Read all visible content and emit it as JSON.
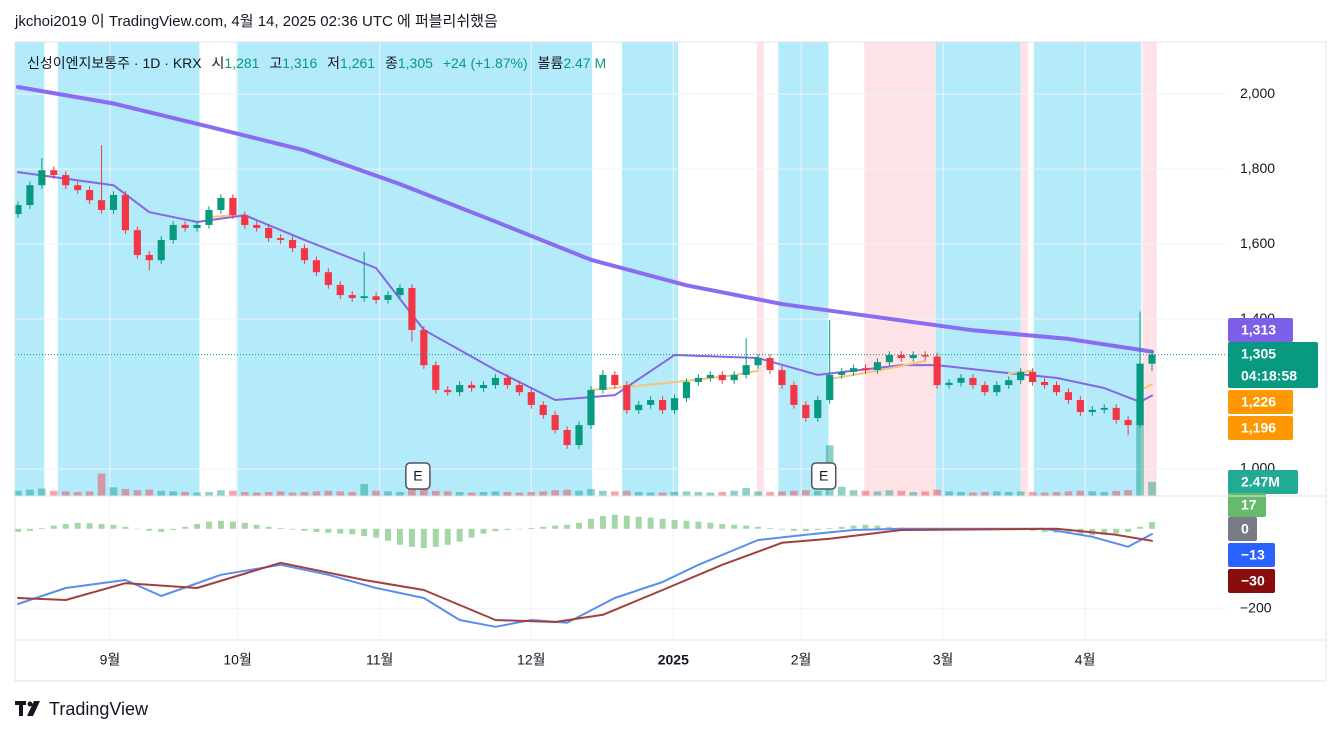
{
  "header": {
    "text": "jkchoi2019 이 TradingView.com, 4월 14, 2025 02:36 UTC 에 퍼블리쉬했음"
  },
  "footer": {
    "text": "TradingView"
  },
  "chart_data": [
    {
      "type": "candlestick",
      "title": "신성이엔지보통주 · 1D · KRX",
      "ohlc": [
        {
          "name": "시",
          "value": "1,281"
        },
        {
          "name": "고",
          "value": "1,316"
        },
        {
          "name": "저",
          "value": "1,261"
        },
        {
          "name": "종",
          "value": "1,305"
        }
      ],
      "change": "+24 (+1.87%)",
      "volume_name": "볼륨",
      "volume_value": "2.47 M",
      "up_color": "#089981",
      "down_color": "#f23645",
      "ylim": [
        928,
        2139
      ],
      "yticks": [
        {
          "value": 1000,
          "label": "1,000"
        },
        {
          "value": 1400,
          "label": "1,400"
        },
        {
          "value": 1600,
          "label": "1,600"
        },
        {
          "value": 1800,
          "label": "1,800"
        },
        {
          "value": 2000,
          "label": "2,000"
        }
      ],
      "grid": true,
      "open": [
        1680,
        1704,
        1757,
        1797,
        1784,
        1757,
        1744,
        1717,
        1691,
        1731,
        1637,
        1571,
        1557,
        1611,
        1651,
        1643,
        1651,
        1691,
        1723,
        1677,
        1651,
        1643,
        1616,
        1611,
        1589,
        1557,
        1525,
        1491,
        1464,
        1456,
        1461,
        1451,
        1464,
        1483,
        1371,
        1277,
        1211,
        1205,
        1224,
        1216,
        1224,
        1243,
        1224,
        1205,
        1171,
        1144,
        1104,
        1064,
        1117,
        1211,
        1251,
        1224,
        1157,
        1171,
        1184,
        1157,
        1189,
        1232,
        1243,
        1251,
        1237,
        1251,
        1277,
        1296,
        1264,
        1224,
        1171,
        1136,
        1184,
        1251,
        1259,
        1269,
        1264,
        1285,
        1304,
        1296,
        1304,
        1300,
        1224,
        1230,
        1243,
        1224,
        1205,
        1224,
        1237,
        1259,
        1232,
        1224,
        1205,
        1184,
        1152,
        1158,
        1163,
        1131,
        1117,
        1281
      ],
      "high": [
        1714,
        1767,
        1830,
        1807,
        1794,
        1767,
        1754,
        1864,
        1741,
        1741,
        1647,
        1581,
        1621,
        1661,
        1661,
        1661,
        1701,
        1733,
        1733,
        1687,
        1661,
        1653,
        1626,
        1621,
        1599,
        1567,
        1535,
        1501,
        1474,
        1579,
        1471,
        1474,
        1493,
        1493,
        1381,
        1287,
        1221,
        1234,
        1234,
        1234,
        1253,
        1253,
        1234,
        1215,
        1181,
        1154,
        1114,
        1127,
        1221,
        1264,
        1261,
        1234,
        1181,
        1194,
        1194,
        1199,
        1242,
        1253,
        1261,
        1261,
        1261,
        1349,
        1306,
        1306,
        1274,
        1234,
        1181,
        1194,
        1397,
        1269,
        1279,
        1279,
        1295,
        1314,
        1314,
        1314,
        1314,
        1310,
        1240,
        1253,
        1253,
        1234,
        1234,
        1247,
        1269,
        1269,
        1242,
        1234,
        1215,
        1194,
        1168,
        1173,
        1173,
        1141,
        1420,
        1316
      ],
      "low": [
        1670,
        1694,
        1747,
        1774,
        1747,
        1734,
        1707,
        1681,
        1681,
        1627,
        1561,
        1530,
        1547,
        1601,
        1633,
        1633,
        1641,
        1681,
        1667,
        1641,
        1633,
        1606,
        1601,
        1579,
        1547,
        1515,
        1481,
        1454,
        1446,
        1446,
        1441,
        1441,
        1454,
        1340,
        1267,
        1201,
        1195,
        1195,
        1206,
        1206,
        1214,
        1214,
        1195,
        1161,
        1134,
        1094,
        1054,
        1054,
        1107,
        1201,
        1214,
        1147,
        1147,
        1161,
        1147,
        1147,
        1179,
        1222,
        1233,
        1227,
        1227,
        1241,
        1267,
        1254,
        1214,
        1161,
        1126,
        1126,
        1174,
        1241,
        1249,
        1254,
        1254,
        1275,
        1286,
        1286,
        1290,
        1214,
        1214,
        1220,
        1214,
        1195,
        1195,
        1214,
        1227,
        1222,
        1214,
        1195,
        1174,
        1142,
        1142,
        1148,
        1121,
        1090,
        1110,
        1261
      ],
      "close": [
        1704,
        1757,
        1797,
        1784,
        1757,
        1744,
        1717,
        1691,
        1731,
        1637,
        1571,
        1557,
        1611,
        1651,
        1643,
        1651,
        1691,
        1723,
        1677,
        1651,
        1643,
        1616,
        1611,
        1589,
        1557,
        1525,
        1491,
        1464,
        1456,
        1461,
        1451,
        1464,
        1483,
        1371,
        1277,
        1211,
        1205,
        1224,
        1216,
        1224,
        1243,
        1224,
        1205,
        1171,
        1144,
        1104,
        1064,
        1117,
        1211,
        1251,
        1224,
        1157,
        1171,
        1184,
        1157,
        1189,
        1232,
        1243,
        1251,
        1237,
        1251,
        1277,
        1296,
        1264,
        1224,
        1171,
        1136,
        1184,
        1251,
        1259,
        1269,
        1264,
        1285,
        1304,
        1296,
        1304,
        1300,
        1224,
        1230,
        1243,
        1224,
        1205,
        1224,
        1237,
        1259,
        1232,
        1224,
        1205,
        1184,
        1152,
        1158,
        1163,
        1131,
        1117,
        1281,
        1305
      ],
      "volume": [
        900000,
        1100000,
        1300000,
        900000,
        800000,
        700000,
        800000,
        3900000,
        1500000,
        1200000,
        1000000,
        1100000,
        900000,
        800000,
        700000,
        600000,
        700000,
        1000000,
        900000,
        700000,
        600000,
        700000,
        800000,
        600000,
        700000,
        800000,
        900000,
        800000,
        700000,
        2100000,
        900000,
        800000,
        700000,
        1500000,
        1300000,
        900000,
        800000,
        700000,
        600000,
        700000,
        800000,
        700000,
        600000,
        700000,
        800000,
        1000000,
        1100000,
        900000,
        1200000,
        900000,
        800000,
        900000,
        700000,
        600000,
        600000,
        700000,
        800000,
        700000,
        600000,
        700000,
        900000,
        1400000,
        800000,
        700000,
        800000,
        900000,
        1000000,
        900000,
        8800000,
        1600000,
        1000000,
        900000,
        800000,
        1000000,
        900000,
        700000,
        800000,
        1100000,
        800000,
        700000,
        600000,
        700000,
        800000,
        700000,
        800000,
        700000,
        600000,
        700000,
        800000,
        900000,
        800000,
        700000,
        900000,
        1000000,
        16500000,
        2470000
      ],
      "series": [
        {
          "color": "#8a6cf2",
          "x": [
            0,
            8,
            16,
            24,
            32,
            40,
            48,
            56,
            64,
            72,
            80,
            88,
            95
          ],
          "values": [
            2019,
            1975,
            1913,
            1850,
            1760,
            1660,
            1558,
            1490,
            1440,
            1405,
            1370,
            1347,
            1313
          ]
        },
        {
          "color": "#8566e6",
          "x": [
            0,
            8,
            11,
            15,
            19,
            24,
            30,
            34,
            40,
            45,
            50,
            55,
            62,
            67,
            74,
            77,
            82,
            87,
            91,
            94,
            95
          ],
          "values": [
            1792,
            1757,
            1685,
            1659,
            1677,
            1611,
            1536,
            1371,
            1264,
            1184,
            1197,
            1304,
            1296,
            1251,
            1277,
            1277,
            1259,
            1243,
            1216,
            1179,
            1196
          ]
        },
        {
          "color": "#f7c37a",
          "x": [
            16,
            18,
            19,
            48,
            52,
            56,
            60,
            62,
            63,
            68,
            72,
            76,
            77,
            83,
            85,
            86,
            94,
            95
          ],
          "values": [
            1672,
            1677,
            null,
            1211,
            1222,
            1235,
            1250,
            1262,
            null,
            1240,
            1262,
            1288,
            null,
            1255,
            1262,
            null,
            1210,
            1226
          ]
        }
      ],
      "zones": [
        {
          "from": -0.25,
          "to": 2.2,
          "color": "#b3ebfa"
        },
        {
          "from": 3.35,
          "to": 15.2,
          "color": "#b3ebfa"
        },
        {
          "from": 18.3,
          "to": 48.1,
          "color": "#b3ebfa"
        },
        {
          "from": 50.6,
          "to": 55.3,
          "color": "#b3ebfa"
        },
        {
          "from": 61.9,
          "to": 62.5,
          "color": "#fde3e5"
        },
        {
          "from": 63.7,
          "to": 67.9,
          "color": "#b3ebfa"
        },
        {
          "from": 70.9,
          "to": 76.9,
          "color": "#fde3e5"
        },
        {
          "from": 76.9,
          "to": 84.0,
          "color": "#b3ebfa"
        },
        {
          "from": 84.0,
          "to": 84.6,
          "color": "#fde3e5"
        },
        {
          "from": 85.1,
          "to": 94.1,
          "color": "#b3ebfa"
        },
        {
          "from": 94.2,
          "to": 95.4,
          "color": "#fde3e5"
        }
      ],
      "events": [
        {
          "x": 33.5,
          "label": "E"
        },
        {
          "x": 67.5,
          "label": "E"
        }
      ],
      "price_labels": [
        {
          "value": 1313,
          "label": "1,313",
          "color": "#7e5fe8"
        },
        {
          "value": 1305,
          "label": "1,305",
          "color": "#089981",
          "countdown": "04:18:58"
        },
        {
          "value": 1226,
          "label": "1,226",
          "color": "#ff9800"
        },
        {
          "value": 1196,
          "label": "1,196",
          "color": "#ff9800"
        }
      ],
      "volume_label": {
        "value": 2470000,
        "label": "2.47M",
        "color": "#22ab94"
      }
    },
    {
      "type": "macd",
      "xlim": [
        -0.25,
        101.2
      ],
      "xticks": [
        {
          "value": 7.7,
          "label": "9월"
        },
        {
          "value": 18.4,
          "label": "10월"
        },
        {
          "value": 30.3,
          "label": "11월"
        },
        {
          "value": 43.0,
          "label": "12월"
        },
        {
          "value": 54.9,
          "label": "2025"
        },
        {
          "value": 65.6,
          "label": "2월"
        },
        {
          "value": 77.5,
          "label": "3월"
        },
        {
          "value": 89.4,
          "label": "4월"
        }
      ],
      "ylim": [
        -278,
        82
      ],
      "yticks": [
        {
          "value": -200,
          "label": "−200"
        }
      ],
      "histogram": {
        "color": "#a5d6a7",
        "values": [
          -8,
          -5,
          2,
          8,
          12,
          15,
          14,
          12,
          10,
          5,
          0,
          -5,
          -8,
          -3,
          5,
          12,
          18,
          20,
          18,
          15,
          10,
          5,
          2,
          -2,
          -5,
          -8,
          -10,
          -12,
          -14,
          -18,
          -22,
          -30,
          -40,
          -45,
          -48,
          -45,
          -40,
          -32,
          -22,
          -12,
          -6,
          -3,
          0,
          2,
          5,
          8,
          10,
          15,
          25,
          32,
          35,
          33,
          30,
          28,
          25,
          22,
          20,
          18,
          15,
          12,
          10,
          8,
          5,
          2,
          -2,
          -5,
          -6,
          -3,
          2,
          5,
          8,
          10,
          8,
          5,
          3,
          2,
          1,
          0,
          0,
          0,
          0,
          0,
          -1,
          -2,
          -3,
          -5,
          -8,
          -10,
          -12,
          -14,
          -16,
          -15,
          -12,
          -8,
          5,
          17
        ]
      },
      "series": [
        {
          "color": "#5b8def",
          "x": [
            0,
            4,
            9,
            12,
            17,
            22,
            26,
            30,
            34,
            37,
            40,
            43,
            46,
            50,
            54,
            57,
            62,
            66,
            70,
            74,
            86,
            90,
            93,
            95
          ],
          "values": [
            -188,
            -148,
            -128,
            -168,
            -115,
            -90,
            -115,
            -148,
            -173,
            -228,
            -245,
            -228,
            -235,
            -173,
            -133,
            -90,
            -28,
            -15,
            -3,
            0,
            0,
            -20,
            -45,
            -13
          ]
        },
        {
          "color": "#a0413e",
          "x": [
            0,
            4,
            9,
            15,
            22,
            29,
            34,
            40,
            45,
            49,
            54,
            59,
            64,
            68,
            74,
            87,
            92,
            95
          ],
          "values": [
            -173,
            -178,
            -136,
            -148,
            -85,
            -128,
            -153,
            -228,
            -233,
            -215,
            -153,
            -90,
            -35,
            -25,
            -3,
            0,
            -15,
            -30
          ]
        }
      ],
      "value_tags": [
        {
          "value": 17,
          "label": "17",
          "color": "#66bb6a"
        },
        {
          "value": 0,
          "label": "0",
          "color": "#787b86"
        },
        {
          "value": -13,
          "label": "−13",
          "color": "#2962ff"
        },
        {
          "value": -30,
          "label": "−30",
          "color": "#880e0e"
        }
      ]
    }
  ]
}
